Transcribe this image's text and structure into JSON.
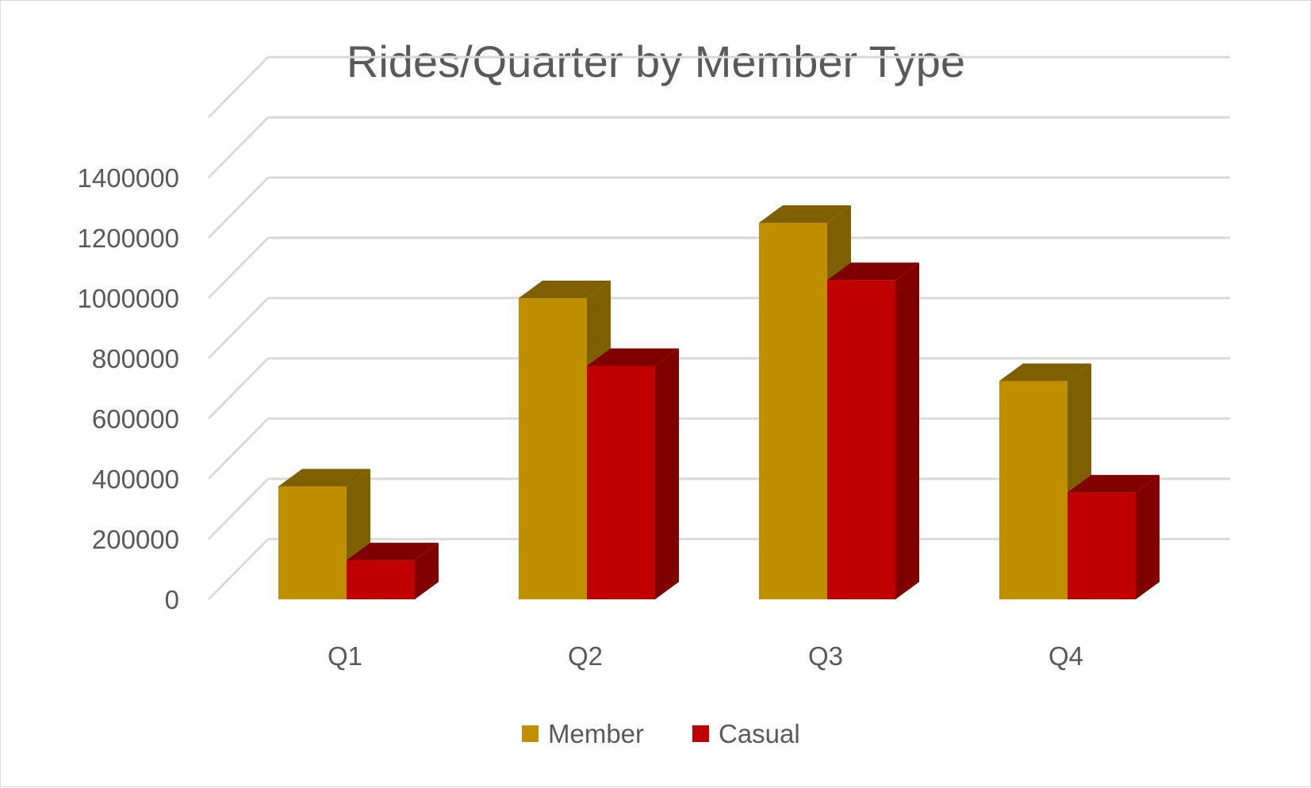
{
  "chart_data": {
    "type": "bar",
    "style": "3d-clustered-column",
    "title": "Rides/Quarter by Member Type",
    "categories": [
      "Q1",
      "Q2",
      "Q3",
      "Q4"
    ],
    "series": [
      {
        "name": "Member",
        "values": [
          375000,
          1000000,
          1250000,
          725000
        ],
        "color": "#bf8f00",
        "side_color": "#7f6000"
      },
      {
        "name": "Casual",
        "values": [
          130000,
          775000,
          1060000,
          355000
        ],
        "color": "#c00000",
        "side_color": "#800000"
      }
    ],
    "yticks": [
      "0",
      "200000",
      "400000",
      "600000",
      "800000",
      "1000000",
      "1200000",
      "1400000"
    ],
    "ylim": [
      0,
      1400000
    ],
    "grid": true,
    "legend_position": "bottom",
    "colors": {
      "grid": "#d9d9d9",
      "text": "#595959",
      "border": "#d9d9d9"
    }
  }
}
